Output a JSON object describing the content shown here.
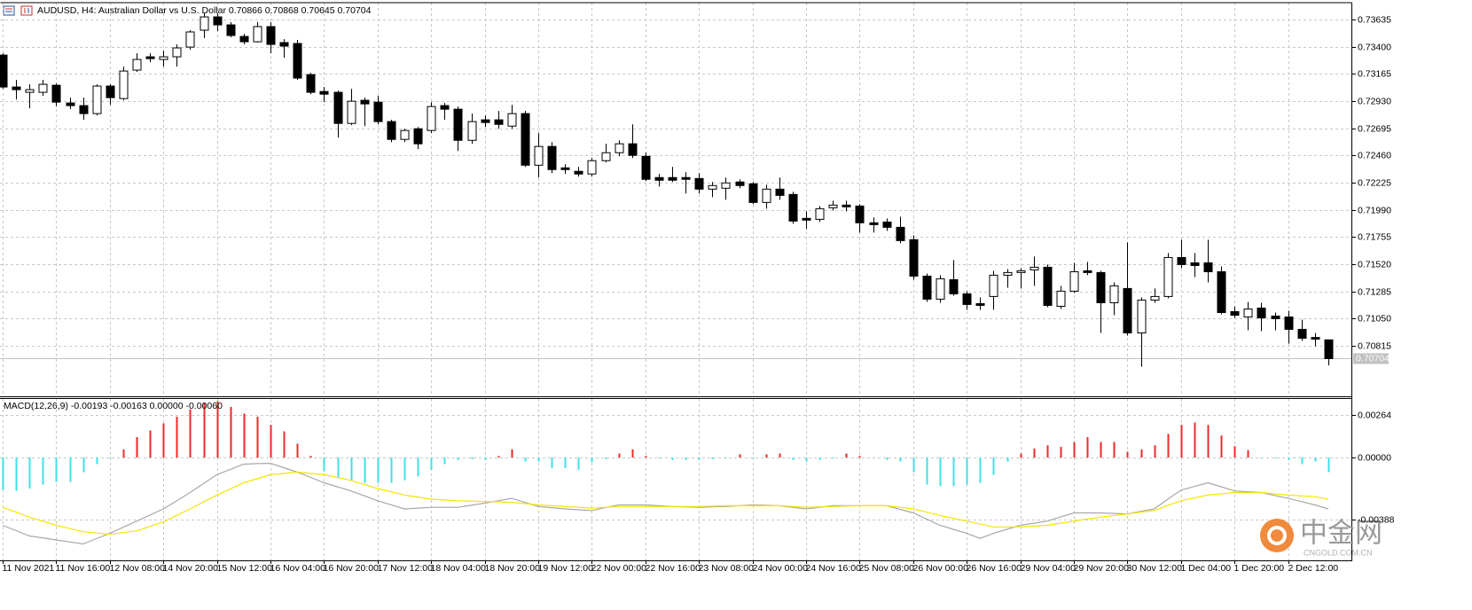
{
  "chart_data": [
    {
      "type": "candlestick",
      "title": "AUDUSD, H4:  Australian Dollar vs U.S. Dollar  0.70866 0.70868 0.70645 0.70704",
      "up_color": "#ffffff",
      "down_color": "#000000",
      "grid": true,
      "categories": [
        "11 Nov 2021",
        null,
        null,
        null,
        "11 Nov 16:00",
        null,
        null,
        null,
        "12 Nov 08:00",
        null,
        null,
        null,
        "14 Nov 20:00",
        null,
        null,
        null,
        "15 Nov 12:00",
        null,
        null,
        null,
        "16 Nov 04:00",
        null,
        null,
        null,
        "16 Nov 20:00",
        null,
        null,
        null,
        "17 Nov 12:00",
        null,
        null,
        null,
        "18 Nov 04:00",
        null,
        null,
        null,
        "18 Nov 20:00",
        null,
        null,
        null,
        "19 Nov 12:00",
        null,
        null,
        null,
        "22 Nov 00:00",
        null,
        null,
        null,
        "22 Nov 16:00",
        null,
        null,
        null,
        "23 Nov 08:00",
        null,
        null,
        null,
        "24 Nov 00:00",
        null,
        null,
        null,
        "24 Nov 16:00",
        null,
        null,
        null,
        "25 Nov 08:00",
        null,
        null,
        null,
        "26 Nov 00:00",
        null,
        null,
        null,
        "26 Nov 16:00",
        null,
        null,
        null,
        "29 Nov 04:00",
        null,
        null,
        null,
        "29 Nov 20:00",
        null,
        null,
        null,
        "30 Nov 12:00",
        null,
        null,
        null,
        "1 Dec 04:00",
        null,
        null,
        null,
        "1 Dec 20:00",
        null,
        null,
        null,
        "2 Dec 12:00",
        null,
        null,
        null
      ],
      "open": [
        0.73328,
        0.73052,
        0.73006,
        0.73006,
        0.73067,
        0.72914,
        0.72891,
        0.72822,
        0.7306,
        0.72952,
        0.73198,
        0.73313,
        0.7329,
        0.73313,
        0.73397,
        0.73543,
        0.73658,
        0.73589,
        0.73489,
        0.73443,
        0.73574,
        0.73436,
        0.73428,
        0.73159,
        0.73013,
        0.73006,
        0.72737,
        0.72937,
        0.72921,
        0.72753,
        0.72599,
        0.72691,
        0.72676,
        0.72891,
        0.7286,
        0.72591,
        0.72768,
        0.72768,
        0.72714,
        0.72822,
        0.72376,
        0.72538,
        0.72353,
        0.72323,
        0.723,
        0.72415,
        0.72484,
        0.72561,
        0.72453,
        0.72269,
        0.72269,
        0.72269,
        0.72261,
        0.72169,
        0.72177,
        0.72231,
        0.72215,
        0.72054,
        0.72169,
        0.72123,
        0.71916,
        0.71908,
        0.72008,
        0.72031,
        0.72023,
        0.71878,
        0.71885,
        0.71839,
        0.71732,
        0.71417,
        0.71218,
        0.71386,
        0.71264,
        0.71179,
        0.71241,
        0.71425,
        0.71448,
        0.71471,
        0.71494,
        0.71156,
        0.71287,
        0.71463,
        0.71448,
        0.71187,
        0.7131,
        0.70926,
        0.7121,
        0.71241,
        0.71578,
        0.71532,
        0.71532,
        0.71455,
        0.7111,
        0.71064,
        0.71141,
        0.71072,
        0.71064,
        0.70957,
        0.70887,
        0.70866
      ],
      "high": [
        0.73343,
        0.73113,
        0.73075,
        0.73113,
        0.73083,
        0.7296,
        0.7296,
        0.73075,
        0.73075,
        0.73228,
        0.73343,
        0.73343,
        0.73367,
        0.7342,
        0.73543,
        0.73689,
        0.73689,
        0.73612,
        0.73512,
        0.73612,
        0.73612,
        0.73466,
        0.73459,
        0.73175,
        0.73052,
        0.73021,
        0.73036,
        0.7296,
        0.72975,
        0.72768,
        0.72691,
        0.72706,
        0.72921,
        0.72914,
        0.72883,
        0.72822,
        0.72806,
        0.72845,
        0.72898,
        0.72845,
        0.72653,
        0.72576,
        0.72384,
        0.72361,
        0.72438,
        0.72561,
        0.72591,
        0.72729,
        0.72484,
        0.723,
        0.72361,
        0.72315,
        0.72307,
        0.72231,
        0.72269,
        0.72254,
        0.72231,
        0.72208,
        0.72269,
        0.72146,
        0.71977,
        0.72023,
        0.72069,
        0.72069,
        0.72039,
        0.71924,
        0.71916,
        0.71931,
        0.7177,
        0.7144,
        0.71425,
        0.71555,
        0.71287,
        0.71233,
        0.71463,
        0.71478,
        0.71486,
        0.71586,
        0.71517,
        0.71333,
        0.71532,
        0.7154,
        0.71463,
        0.71363,
        0.71709,
        0.71233,
        0.7131,
        0.71617,
        0.71732,
        0.71617,
        0.71732,
        0.71501,
        0.71156,
        0.71194,
        0.71187,
        0.71102,
        0.71118,
        0.71041,
        0.70926,
        0.70868
      ],
      "low": [
        0.73036,
        0.72944,
        0.72868,
        0.72975,
        0.72883,
        0.7286,
        0.72768,
        0.72806,
        0.72898,
        0.72937,
        0.73182,
        0.73267,
        0.73228,
        0.73228,
        0.73374,
        0.73474,
        0.73535,
        0.73482,
        0.7342,
        0.73436,
        0.73343,
        0.73305,
        0.73113,
        0.7299,
        0.72921,
        0.72614,
        0.72722,
        0.72714,
        0.72729,
        0.72576,
        0.72576,
        0.72515,
        0.72653,
        0.72768,
        0.72499,
        0.72561,
        0.72706,
        0.72691,
        0.72691,
        0.72361,
        0.72269,
        0.72307,
        0.723,
        0.72277,
        0.72277,
        0.724,
        0.72453,
        0.72438,
        0.72238,
        0.72192,
        0.72231,
        0.72131,
        0.72131,
        0.721,
        0.72077,
        0.72177,
        0.72039,
        0.72,
        0.72077,
        0.7187,
        0.71824,
        0.71885,
        0.71985,
        0.71977,
        0.71793,
        0.71793,
        0.71808,
        0.71701,
        0.71386,
        0.71194,
        0.71187,
        0.71248,
        0.71125,
        0.71125,
        0.71125,
        0.71317,
        0.7131,
        0.71333,
        0.71148,
        0.71133,
        0.71271,
        0.71425,
        0.70926,
        0.71079,
        0.70903,
        0.70634,
        0.71187,
        0.71225,
        0.71486,
        0.71409,
        0.71363,
        0.71087,
        0.71056,
        0.70949,
        0.70941,
        0.70949,
        0.70834,
        0.70857,
        0.70811,
        0.70645
      ],
      "close": [
        0.73052,
        0.73029,
        0.73029,
        0.73075,
        0.72921,
        0.72891,
        0.72822,
        0.7306,
        0.7296,
        0.7319,
        0.7329,
        0.73297,
        0.73313,
        0.7339,
        0.73528,
        0.73658,
        0.73589,
        0.73497,
        0.73443,
        0.73574,
        0.7342,
        0.73405,
        0.73129,
        0.73006,
        0.7299,
        0.72737,
        0.72929,
        0.72906,
        0.72753,
        0.72599,
        0.72676,
        0.72561,
        0.72883,
        0.7286,
        0.72591,
        0.72753,
        0.72745,
        0.72729,
        0.72822,
        0.72376,
        0.72538,
        0.72338,
        0.72338,
        0.723,
        0.72415,
        0.72484,
        0.72561,
        0.72461,
        0.72254,
        0.72246,
        0.72246,
        0.72254,
        0.72169,
        0.722,
        0.72223,
        0.722,
        0.72054,
        0.72169,
        0.72115,
        0.71893,
        0.71901,
        0.72,
        0.72031,
        0.72016,
        0.71878,
        0.71862,
        0.71839,
        0.71724,
        0.71417,
        0.71218,
        0.71394,
        0.71264,
        0.71172,
        0.71164,
        0.71425,
        0.71448,
        0.71463,
        0.71494,
        0.71164,
        0.71287,
        0.71455,
        0.71448,
        0.71187,
        0.71333,
        0.70926,
        0.7121,
        0.71241,
        0.71578,
        0.71517,
        0.71509,
        0.71455,
        0.71102,
        0.71079,
        0.71133,
        0.71056,
        0.71049,
        0.70957,
        0.7088,
        0.70872,
        0.70704
      ],
      "current_price": 0.70704,
      "ylim": [
        0.70378,
        0.73781
      ],
      "yticks": [
        0.73635,
        {
          "value": 0.734,
          "label": "0.73400"
        },
        0.73165,
        {
          "value": 0.7293,
          "label": "0.72930"
        },
        0.72695,
        {
          "value": 0.7246,
          "label": "0.72460"
        },
        0.72225,
        {
          "value": 0.7199,
          "label": "0.71990"
        },
        0.71755,
        {
          "value": 0.7152,
          "label": "0.71520"
        },
        0.71285,
        {
          "value": 0.7105,
          "label": "0.71050"
        },
        0.70815
      ],
      "watermark": {
        "text": "中金网",
        "subtext": "CNGOLD.COM.CN"
      }
    },
    {
      "type": "bar",
      "title": "MACD(12,26,9) -0.00193 -0.00163 0.00000 -0.00060",
      "grid": true,
      "ylim": [
        -0.0064,
        0.0037
      ],
      "yticks": [
        0.00264,
        {
          "value": 0,
          "label": "0.00000"
        },
        -0.00388
      ],
      "series": [
        {
          "type": "bar",
          "color": "#ee2a2a",
          "negative_color": "#3fe0e8",
          "values": [
            -0.002,
            -0.00208,
            -0.00193,
            -0.00168,
            -0.00152,
            -0.00152,
            -0.00091,
            -0.00041,
            -5e-05,
            0.00051,
            0.00127,
            0.00168,
            0.00213,
            0.00254,
            0.003,
            0.0034,
            0.00351,
            0.00315,
            0.00274,
            0.00254,
            0.00203,
            0.00163,
            0.00086,
            0.0001,
            -0.00086,
            -0.00122,
            -0.00142,
            -0.00158,
            -0.00158,
            -0.00158,
            -0.00142,
            -0.00117,
            -0.00076,
            -0.00041,
            -0.00015,
            -0.0001,
            -0.00015,
            0.0001,
            0.00051,
            -0.00025,
            -0.00025,
            -0.00066,
            -0.00066,
            -0.00076,
            -0.0003,
            -0.0001,
            0.00025,
            0.00051,
            0.0001,
            -5e-05,
            -0.00015,
            -0.00015,
            -0.00015,
            -0.0001,
            -5e-05,
            0.0002,
            -5e-05,
            0.0002,
            0.00025,
            -0.00015,
            -0.00025,
            -0.00015,
            -5e-05,
            0.00025,
            0.0001,
            -2e-05,
            -0.00015,
            -0.00025,
            -0.00091,
            -0.00168,
            -0.00178,
            -0.00178,
            -0.00168,
            -0.00158,
            -0.00107,
            -0.00025,
            0.00025,
            0.00056,
            0.00076,
            0.00066,
            0.00097,
            0.00127,
            0.00097,
            0.00097,
            0.00036,
            0.00051,
            0.00076,
            0.00147,
            0.00203,
            0.00218,
            0.00203,
            0.00137,
            0.00071,
            0.00046,
            -5e-05,
            -5e-05,
            -0.00015,
            -0.00041,
            -0.00025,
            -0.00091
          ]
        },
        {
          "type": "line",
          "color": "#a8a8a8",
          "values": [
            -0.00422,
            -0.00455,
            -0.00488,
            -0.005,
            -0.00513,
            -0.00525,
            -0.00538,
            -0.00505,
            -0.00472,
            -0.00434,
            -0.00396,
            -0.00358,
            -0.0032,
            -0.00269,
            -0.00218,
            -0.00162,
            -0.00107,
            -0.00074,
            -0.00041,
            -0.00038,
            -0.00036,
            -0.00063,
            -0.00091,
            -0.00124,
            -0.00157,
            -0.00182,
            -0.00208,
            -0.00238,
            -0.00269,
            -0.00294,
            -0.0032,
            -0.00315,
            -0.0031,
            -0.0031,
            -0.0031,
            -0.00297,
            -0.00284,
            -0.00269,
            -0.00254,
            -0.00279,
            -0.00305,
            -0.00312,
            -0.0032,
            -0.00325,
            -0.0033,
            -0.00312,
            -0.00295,
            -0.00295,
            -0.00295,
            -0.003,
            -0.00305,
            -0.00307,
            -0.0031,
            -0.00307,
            -0.00305,
            -0.003,
            -0.00295,
            -0.00297,
            -0.003,
            -0.0031,
            -0.0032,
            -0.0031,
            -0.003,
            -0.003,
            -0.003,
            -0.003,
            -0.003,
            -0.00322,
            -0.00345,
            -0.00383,
            -0.00422,
            -0.00447,
            -0.00472,
            -0.00503,
            -0.00472,
            -0.00447,
            -0.00422,
            -0.00409,
            -0.00396,
            -0.0037,
            -0.00345,
            -0.00345,
            -0.00345,
            -0.00348,
            -0.00351,
            -0.00335,
            -0.0032,
            -0.00261,
            -0.00203,
            -0.0018,
            -0.00157,
            -0.00182,
            -0.00208,
            -0.00213,
            -0.00218,
            -0.00236,
            -0.00254,
            -0.00274,
            -0.00295,
            -0.0032
          ]
        },
        {
          "type": "line",
          "color": "#f2e600",
          "values": [
            -0.0031,
            -0.0034,
            -0.00371,
            -0.00396,
            -0.00422,
            -0.00442,
            -0.00462,
            -0.0047,
            -0.00478,
            -0.00467,
            -0.00457,
            -0.00429,
            -0.00401,
            -0.0036,
            -0.0032,
            -0.00277,
            -0.00234,
            -0.00195,
            -0.00157,
            -0.00132,
            -0.00107,
            -0.00099,
            -0.00091,
            -0.00099,
            -0.00107,
            -0.00124,
            -0.00142,
            -0.00167,
            -0.00193,
            -0.00213,
            -0.00234,
            -0.00246,
            -0.00259,
            -0.00264,
            -0.00269,
            -0.00271,
            -0.00274,
            -0.00276,
            -0.00279,
            -0.00287,
            -0.00295,
            -0.003,
            -0.00305,
            -0.0031,
            -0.00315,
            -0.0031,
            -0.00305,
            -0.00305,
            -0.00305,
            -0.00305,
            -0.00305,
            -0.00305,
            -0.00305,
            -0.00302,
            -0.003,
            -0.003,
            -0.003,
            -0.003,
            -0.003,
            -0.00305,
            -0.0031,
            -0.00307,
            -0.00305,
            -0.00302,
            -0.003,
            -0.003,
            -0.003,
            -0.0031,
            -0.0032,
            -0.0034,
            -0.00361,
            -0.00378,
            -0.00396,
            -0.00414,
            -0.00432,
            -0.00432,
            -0.00432,
            -0.00427,
            -0.00422,
            -0.00409,
            -0.00396,
            -0.00383,
            -0.00371,
            -0.00361,
            -0.00351,
            -0.0034,
            -0.0033,
            -0.00299,
            -0.00269,
            -0.00251,
            -0.00234,
            -0.00226,
            -0.00218,
            -0.00218,
            -0.00218,
            -0.00226,
            -0.00234,
            -0.00239,
            -0.00244,
            -0.00259
          ]
        }
      ]
    }
  ]
}
